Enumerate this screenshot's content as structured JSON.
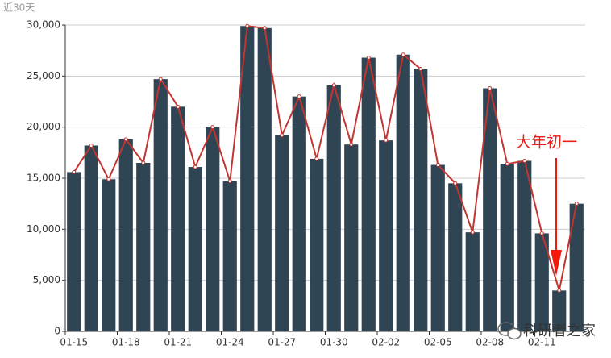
{
  "chart_data": {
    "type": "bar",
    "subtitle": "近30天",
    "categories": [
      "01-15",
      null,
      null,
      "01-18",
      null,
      null,
      "01-21",
      null,
      null,
      "01-24",
      null,
      null,
      "01-27",
      null,
      null,
      "01-30",
      null,
      null,
      "02-02",
      null,
      null,
      "02-05",
      null,
      null,
      "02-08",
      null,
      null,
      "02-11",
      null,
      null
    ],
    "values": [
      15600,
      18200,
      14900,
      18800,
      16500,
      24700,
      22000,
      16100,
      20000,
      14700,
      29900,
      29700,
      19200,
      23000,
      16900,
      24100,
      18300,
      26800,
      18700,
      27100,
      25700,
      16300,
      14500,
      9700,
      23800,
      16400,
      16700,
      9600,
      4000,
      12500
    ],
    "color": "#2f4554",
    "line_overlay": true,
    "line_color": "#c23531",
    "ylim": [
      0,
      30000
    ],
    "yticks": [
      0,
      {
        "value": 5000,
        "label": "5,000"
      },
      {
        "value": 10000,
        "label": "10,000"
      },
      {
        "value": 15000,
        "label": "15,000"
      },
      {
        "value": 20000,
        "label": "20,000"
      },
      {
        "value": 25000,
        "label": "25,000"
      },
      {
        "value": 30000,
        "label": "30,000"
      }
    ],
    "grid": true,
    "annotation": "大年初一",
    "watermark": "科研者之家"
  }
}
